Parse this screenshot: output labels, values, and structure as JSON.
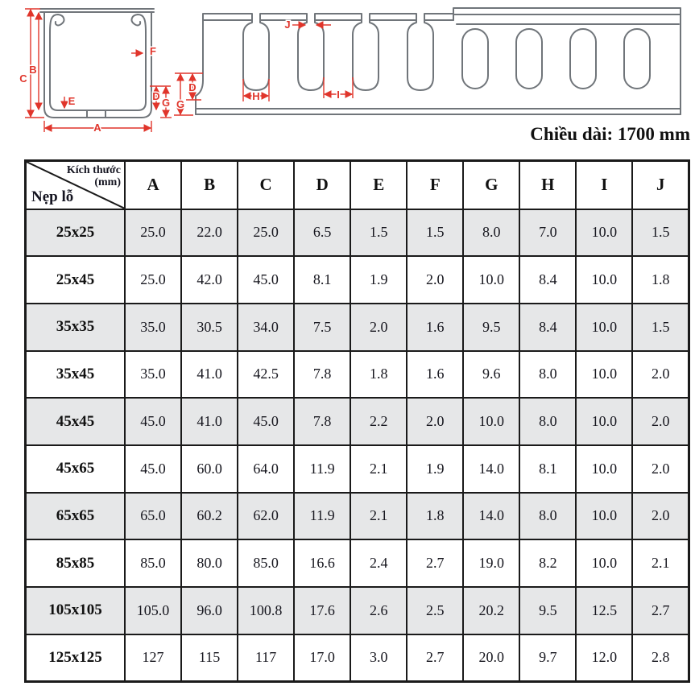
{
  "diagram": {
    "caption": "Chiều dài: 1700 mm",
    "cross_section_labels": {
      "A": "A",
      "B": "B",
      "C": "C",
      "D": "D",
      "E": "E",
      "F": "F",
      "G": "G"
    },
    "side_view_labels": {
      "D": "D",
      "G": "G",
      "H": "H",
      "I": "I",
      "J": "J"
    }
  },
  "table": {
    "corner": {
      "top_line1": "Kích thước",
      "top_line2": "(mm)",
      "bottom": "Nẹp lỗ"
    },
    "columns": [
      "A",
      "B",
      "C",
      "D",
      "E",
      "F",
      "G",
      "H",
      "I",
      "J"
    ],
    "rows": [
      {
        "size": "25x25",
        "values": [
          "25.0",
          "22.0",
          "25.0",
          "6.5",
          "1.5",
          "1.5",
          "8.0",
          "7.0",
          "10.0",
          "1.5"
        ]
      },
      {
        "size": "25x45",
        "values": [
          "25.0",
          "42.0",
          "45.0",
          "8.1",
          "1.9",
          "2.0",
          "10.0",
          "8.4",
          "10.0",
          "1.8"
        ]
      },
      {
        "size": "35x35",
        "values": [
          "35.0",
          "30.5",
          "34.0",
          "7.5",
          "2.0",
          "1.6",
          "9.5",
          "8.4",
          "10.0",
          "1.5"
        ]
      },
      {
        "size": "35x45",
        "values": [
          "35.0",
          "41.0",
          "42.5",
          "7.8",
          "1.8",
          "1.6",
          "9.6",
          "8.0",
          "10.0",
          "2.0"
        ]
      },
      {
        "size": "45x45",
        "values": [
          "45.0",
          "41.0",
          "45.0",
          "7.8",
          "2.2",
          "2.0",
          "10.0",
          "8.0",
          "10.0",
          "2.0"
        ]
      },
      {
        "size": "45x65",
        "values": [
          "45.0",
          "60.0",
          "64.0",
          "11.9",
          "2.1",
          "1.9",
          "14.0",
          "8.1",
          "10.0",
          "2.0"
        ]
      },
      {
        "size": "65x65",
        "values": [
          "65.0",
          "60.2",
          "62.0",
          "11.9",
          "2.1",
          "1.8",
          "14.0",
          "8.0",
          "10.0",
          "2.0"
        ]
      },
      {
        "size": "85x85",
        "values": [
          "85.0",
          "80.0",
          "85.0",
          "16.6",
          "2.4",
          "2.7",
          "19.0",
          "8.2",
          "10.0",
          "2.1"
        ]
      },
      {
        "size": "105x105",
        "values": [
          "105.0",
          "96.0",
          "100.8",
          "17.6",
          "2.6",
          "2.5",
          "20.2",
          "9.5",
          "12.5",
          "2.7"
        ]
      },
      {
        "size": "125x125",
        "values": [
          "127",
          "115",
          "117",
          "17.0",
          "3.0",
          "2.7",
          "20.0",
          "9.7",
          "12.0",
          "2.8"
        ]
      }
    ]
  },
  "colors": {
    "dimension_red": "#e0352b",
    "outline_gray": "#70757a",
    "row_stripe": "#e6e7e8",
    "border": "#1a1a1a"
  }
}
